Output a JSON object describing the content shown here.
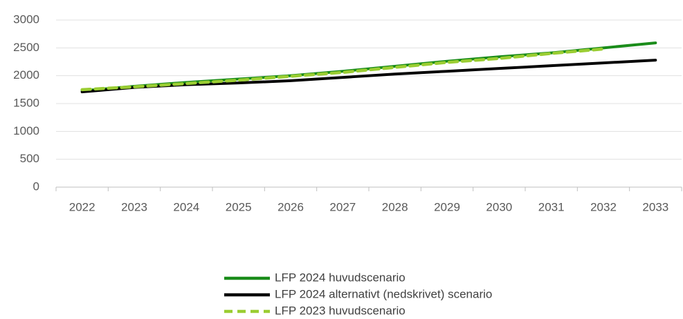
{
  "chart_data": {
    "type": "line",
    "categories": [
      "2022",
      "2023",
      "2024",
      "2025",
      "2026",
      "2027",
      "2028",
      "2029",
      "2030",
      "2031",
      "2032",
      "2033"
    ],
    "series": [
      {
        "name": "LFP 2024 huvudscenario",
        "color": "#1a8c1a",
        "values": [
          1730,
          1810,
          1880,
          1940,
          2000,
          2080,
          2170,
          2260,
          2340,
          2410,
          2500,
          2590
        ]
      },
      {
        "name": "LFP 2024 alternativt (nedskrivet) scenario",
        "color": "#000000",
        "values": [
          1710,
          1790,
          1840,
          1870,
          1910,
          1970,
          2030,
          2080,
          2130,
          2180,
          2230,
          2280
        ]
      },
      {
        "name": "LFP 2023 huvudscenario",
        "color": "#9acd32",
        "dashed": true,
        "values": [
          1750,
          1800,
          1860,
          1920,
          1990,
          2060,
          2150,
          2240,
          2310,
          2400,
          2480,
          null
        ]
      }
    ],
    "ylim": [
      0,
      3000
    ],
    "yticks": [
      0,
      500,
      1000,
      1500,
      2000,
      2500,
      3000
    ],
    "grid": true,
    "legend": "bottom"
  }
}
